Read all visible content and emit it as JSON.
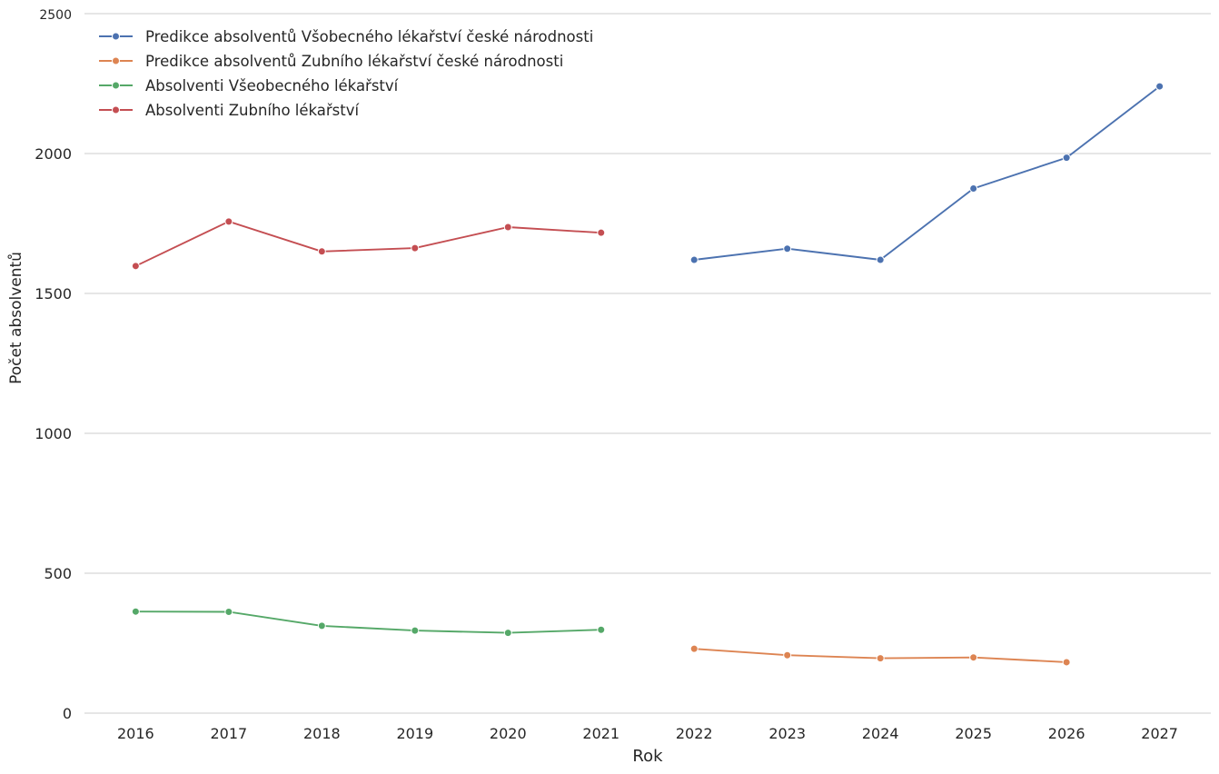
{
  "chart_data": {
    "type": "line",
    "title": "",
    "xlabel": "Rok",
    "ylabel": "Počet absolventů",
    "ylim": [
      0,
      2500
    ],
    "xlim": [
      2015.45,
      2027.55
    ],
    "yticks": [
      {
        "value": 0,
        "label": "0"
      },
      {
        "value": 500,
        "label": "500"
      },
      {
        "value": 1000,
        "label": "1000"
      },
      {
        "value": 1500,
        "label": "1500"
      },
      {
        "value": 2000,
        "label": "2000"
      },
      {
        "value": 2500,
        "label": "2500"
      }
    ],
    "xticks": [
      2016,
      2017,
      2018,
      2019,
      2020,
      2021,
      2022,
      2023,
      2024,
      2025,
      2026,
      2027
    ],
    "grid": "horizontal",
    "legend_position": "top-left",
    "series": [
      {
        "name": "Predikce absolventů Všobecného lékařství české národnosti",
        "color": "#4c72b0",
        "x": [
          2022,
          2023,
          2024,
          2025,
          2026,
          2027
        ],
        "values": [
          1620,
          1660,
          1620,
          1875,
          1985,
          2240
        ]
      },
      {
        "name": "Predikce absolventů Zubního lékařství české národnosti",
        "color": "#dd8452",
        "x": [
          2022,
          2023,
          2024,
          2025,
          2026
        ],
        "values": [
          230,
          207,
          196,
          199,
          182
        ]
      },
      {
        "name": "Absolventi Všeobecného lékařství",
        "color": "#55a868",
        "x": [
          2016,
          2017,
          2018,
          2019,
          2020,
          2021
        ],
        "values": [
          363,
          362,
          312,
          295,
          287,
          298
        ]
      },
      {
        "name": "Absolventi Zubního lékařství",
        "color": "#c44e52",
        "x": [
          2016,
          2017,
          2018,
          2019,
          2020,
          2021
        ],
        "values": [
          1598,
          1757,
          1650,
          1662,
          1737,
          1717
        ]
      }
    ]
  }
}
